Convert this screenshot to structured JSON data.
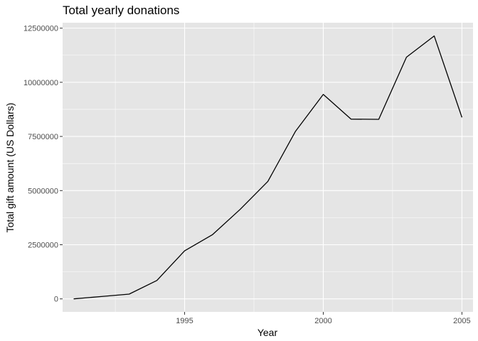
{
  "chart_data": {
    "type": "line",
    "title": "Total yearly donations",
    "xlabel": "Year",
    "ylabel": "Total gift amount (US Dollars)",
    "xlim": [
      1990.6,
      2005.4
    ],
    "ylim": [
      -600000,
      12750000
    ],
    "x_ticks": [
      1995,
      2000,
      2005
    ],
    "x_tick_labels": [
      "1995",
      "2000",
      "2005"
    ],
    "y_ticks": [
      0,
      2500000,
      5000000,
      7500000,
      10000000,
      12500000
    ],
    "y_tick_labels": [
      "0",
      "2500000",
      "5000000",
      "7500000",
      "10000000",
      "12500000"
    ],
    "grid": true,
    "background": "#e5e5e5",
    "line_color": "#000000",
    "series": [
      {
        "x": [
          1991,
          1992,
          1993,
          1994,
          1995,
          1996,
          1997,
          1998,
          1999,
          2000,
          2001,
          2002,
          2003,
          2004,
          2005
        ],
        "values": [
          0,
          110000,
          220000,
          850000,
          2220000,
          2960000,
          4130000,
          5420000,
          7740000,
          9440000,
          8300000,
          8290000,
          11160000,
          12140000,
          8380000
        ]
      }
    ]
  }
}
